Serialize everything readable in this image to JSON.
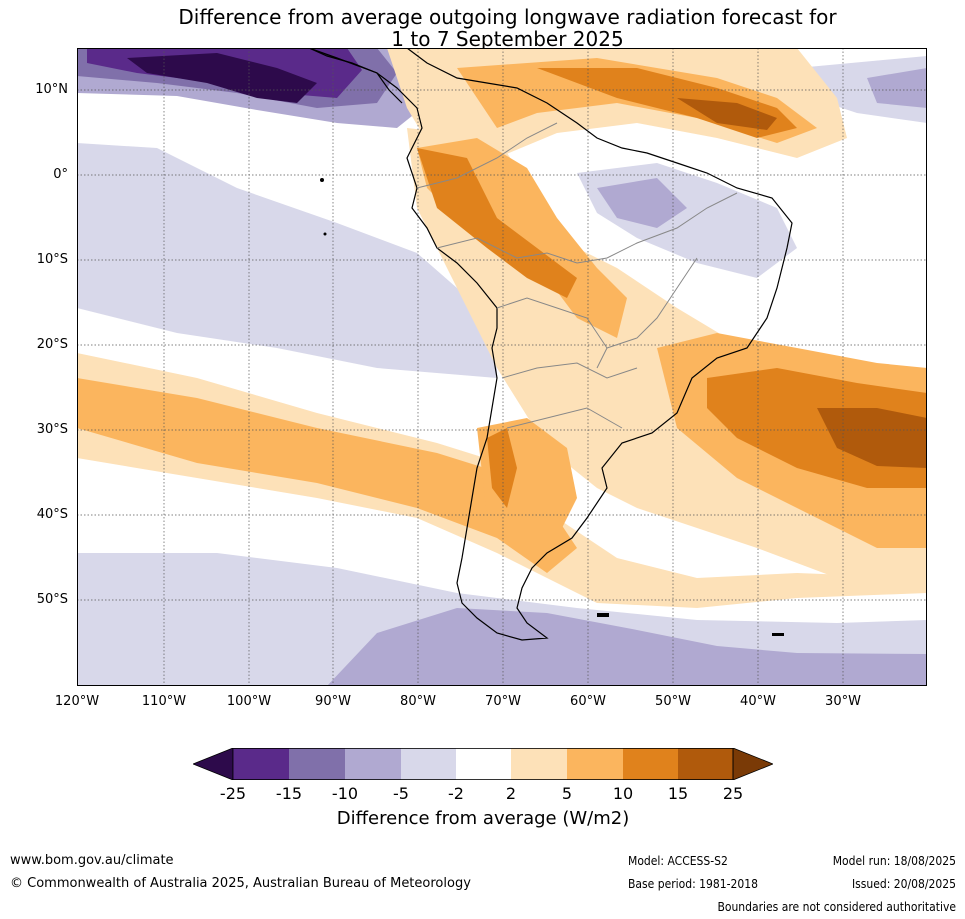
{
  "title": {
    "line1": "Difference from average outgoing longwave radiation forecast for",
    "line2": "1 to 7 September 2025"
  },
  "map": {
    "lat_labels": [
      "10°N",
      "0°",
      "10°S",
      "20°S",
      "30°S",
      "40°S",
      "50°S"
    ],
    "lon_labels": [
      "120°W",
      "110°W",
      "100°W",
      "90°W",
      "80°W",
      "70°W",
      "60°W",
      "50°W",
      "40°W",
      "30°W"
    ],
    "colors": {
      "purple_darkest": "#2d0a4b",
      "purple_dark": "#5a2a8a",
      "purple_mid": "#8070aa",
      "purple_light": "#b0a9d1",
      "purple_lightest": "#d8d8ea",
      "neutral": "#ffffff",
      "orange_lightest": "#fde1b8",
      "orange_light": "#fbb55e",
      "orange_mid": "#e0821c",
      "orange_dark": "#b05a0c",
      "orange_darkest": "#7a3a06"
    }
  },
  "colorbar": {
    "ticks": [
      "-25",
      "-15",
      "-10",
      "-5",
      "-2",
      "2",
      "5",
      "10",
      "15",
      "25"
    ],
    "label": "Difference from average (W/m2)"
  },
  "footer": {
    "website": "www.bom.gov.au/climate",
    "copyright": "© Commonwealth of Australia 2025, Australian Bureau of Meteorology",
    "model": "Model: ACCESS-S2",
    "model_run": "Model run: 18/08/2025",
    "base_period": "Base period: 1981-2018",
    "issued": "Issued: 20/08/2025",
    "disclaimer": "Boundaries are not considered authoritative"
  }
}
